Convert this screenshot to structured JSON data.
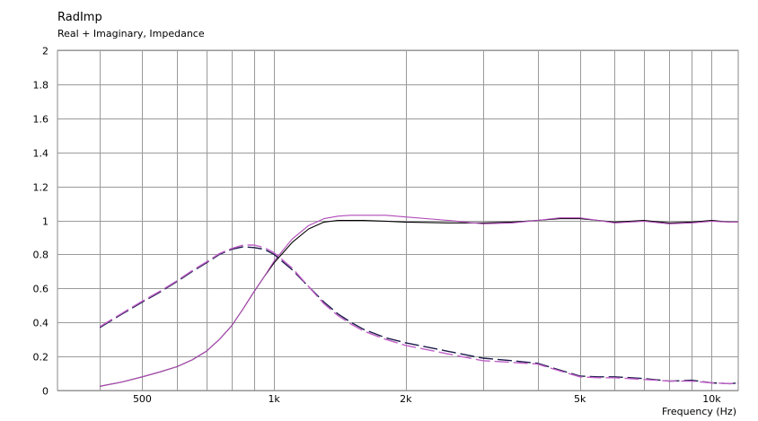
{
  "chart_data": {
    "type": "line",
    "title": "RadImp",
    "subtitle": "Real + Imaginary, Impedance",
    "xlabel": "Frequency  (Hz)",
    "ylabel": "",
    "xscale": "log",
    "xlim": [
      320,
      11500
    ],
    "ylim": [
      0,
      2
    ],
    "grid": true,
    "y_ticks": [
      {
        "value": 0,
        "label": "0"
      },
      {
        "value": 0.2,
        "label": "0.2"
      },
      {
        "value": 0.4,
        "label": "0.4"
      },
      {
        "value": 0.6,
        "label": "0.6"
      },
      {
        "value": 0.8,
        "label": "0.8"
      },
      {
        "value": 1,
        "label": "1"
      },
      {
        "value": 1.2,
        "label": "1.2"
      },
      {
        "value": 1.4,
        "label": "1.4"
      },
      {
        "value": 1.6,
        "label": "1.6"
      },
      {
        "value": 1.8,
        "label": "1.8"
      },
      {
        "value": 2,
        "label": "2"
      }
    ],
    "x_ticks": [
      {
        "value": 500,
        "label": "500"
      },
      {
        "value": 1000,
        "label": "1k"
      },
      {
        "value": 2000,
        "label": "2k"
      },
      {
        "value": 5000,
        "label": "5k"
      },
      {
        "value": 10000,
        "label": "10k"
      }
    ],
    "x_gridlines": [
      400,
      500,
      600,
      700,
      800,
      900,
      1000,
      2000,
      3000,
      4000,
      5000,
      6000,
      7000,
      8000,
      9000,
      10000
    ],
    "series": [
      {
        "role": "real-model",
        "color": "#000000",
        "dashed": false,
        "x": [
          400,
          450,
          500,
          550,
          600,
          650,
          700,
          750,
          800,
          850,
          900,
          950,
          1000,
          1100,
          1200,
          1300,
          1400,
          1500,
          1600,
          1800,
          2000,
          2500,
          3000,
          3500,
          4000,
          4500,
          5000,
          5500,
          6000,
          7000,
          8000,
          9000,
          10000,
          11000,
          11500
        ],
        "y": [
          0.025,
          0.05,
          0.08,
          0.11,
          0.14,
          0.18,
          0.23,
          0.3,
          0.38,
          0.48,
          0.58,
          0.67,
          0.75,
          0.87,
          0.95,
          0.99,
          1.0,
          1.0,
          1.0,
          0.995,
          0.99,
          0.985,
          0.985,
          0.99,
          1.0,
          1.01,
          1.01,
          1.0,
          0.99,
          1.0,
          0.985,
          0.99,
          1.0,
          0.99,
          0.99
        ]
      },
      {
        "role": "real-measured",
        "color": "#b04ab8",
        "dashed": false,
        "x": [
          400,
          450,
          500,
          550,
          600,
          650,
          700,
          750,
          800,
          850,
          900,
          950,
          1000,
          1100,
          1200,
          1300,
          1400,
          1500,
          1600,
          1800,
          2000,
          2500,
          3000,
          3500,
          4000,
          4500,
          5000,
          5500,
          6000,
          7000,
          8000,
          9000,
          10000,
          11000,
          11500
        ],
        "y": [
          0.025,
          0.05,
          0.08,
          0.11,
          0.14,
          0.18,
          0.23,
          0.3,
          0.38,
          0.48,
          0.58,
          0.67,
          0.76,
          0.89,
          0.97,
          1.01,
          1.025,
          1.03,
          1.03,
          1.03,
          1.02,
          1.0,
          0.98,
          0.985,
          1.0,
          1.015,
          1.015,
          1.0,
          0.985,
          0.995,
          0.98,
          0.985,
          0.995,
          0.99,
          0.99
        ]
      },
      {
        "role": "imaginary-model",
        "color": "#1a1a4a",
        "dashed": true,
        "x": [
          400,
          450,
          500,
          550,
          600,
          650,
          700,
          750,
          800,
          850,
          900,
          950,
          1000,
          1100,
          1200,
          1300,
          1400,
          1500,
          1600,
          1800,
          2000,
          2500,
          3000,
          3500,
          4000,
          4500,
          5000,
          5500,
          6000,
          7000,
          8000,
          9000,
          10000,
          11000,
          11500
        ],
        "y": [
          0.37,
          0.45,
          0.52,
          0.58,
          0.64,
          0.7,
          0.75,
          0.8,
          0.83,
          0.845,
          0.84,
          0.83,
          0.8,
          0.71,
          0.61,
          0.52,
          0.45,
          0.4,
          0.36,
          0.31,
          0.28,
          0.23,
          0.19,
          0.175,
          0.16,
          0.12,
          0.085,
          0.08,
          0.08,
          0.07,
          0.055,
          0.06,
          0.045,
          0.04,
          0.045
        ]
      },
      {
        "role": "imaginary-measured",
        "color": "#c060c8",
        "dashed": true,
        "x": [
          400,
          450,
          500,
          550,
          600,
          650,
          700,
          750,
          800,
          850,
          900,
          950,
          1000,
          1100,
          1200,
          1300,
          1400,
          1500,
          1600,
          1800,
          2000,
          2500,
          3000,
          3500,
          4000,
          4500,
          5000,
          5500,
          6000,
          7000,
          8000,
          9000,
          10000,
          11000,
          11500
        ],
        "y": [
          0.375,
          0.455,
          0.525,
          0.585,
          0.645,
          0.705,
          0.755,
          0.805,
          0.835,
          0.855,
          0.855,
          0.84,
          0.81,
          0.72,
          0.61,
          0.51,
          0.44,
          0.39,
          0.35,
          0.3,
          0.265,
          0.215,
          0.175,
          0.165,
          0.155,
          0.115,
          0.08,
          0.075,
          0.075,
          0.065,
          0.055,
          0.055,
          0.045,
          0.04,
          0.045
        ]
      }
    ]
  }
}
